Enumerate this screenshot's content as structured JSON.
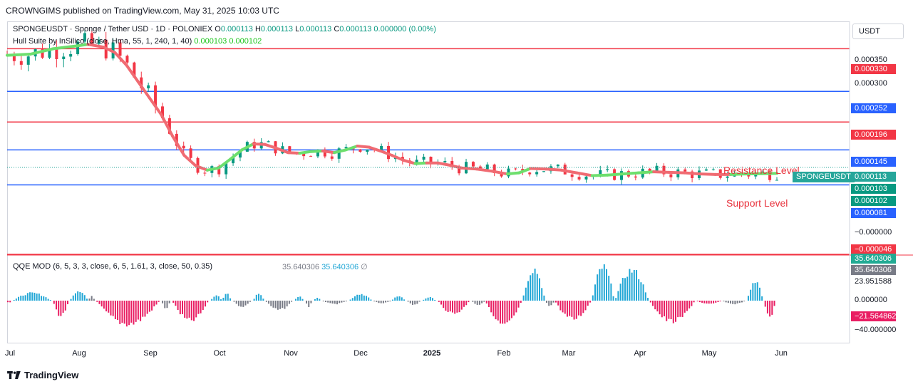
{
  "header": {
    "published": "CROWNGIMS published on TradingView.com, May 31, 2025 10:03 UTC"
  },
  "legend": {
    "symbol_line": "SPONGEUSDT · Sponge / Tether USD · 1D · POLONIEX",
    "ohlc": {
      "o_label": "O",
      "o": "0.000113",
      "h_label": "H",
      "h": "0.000113",
      "l_label": "L",
      "l": "0.000113",
      "c_label": "C",
      "c": "0.000113",
      "change": "0.000000 (0.00%)"
    },
    "hull_line": "Hull Suite by InSilico (close, Hma, 55, 1, 240, 1, 40)",
    "hull_v1": "0.000103",
    "hull_v2": "0.000102",
    "qqe_line": "QQE MOD (6, 5, 3, 3, close, 6, 5, 1.61, 3, close, 50, 0.35)",
    "qqe_v1": "35.640306",
    "qqe_v2": "35.640306",
    "qqe_v3": "∅"
  },
  "currency": "USDT",
  "price_axis": {
    "labels": [
      "0.000350",
      "0.000300",
      "−0.000000"
    ],
    "tags": [
      {
        "text": "0.000330",
        "color": "#f23645"
      },
      {
        "text": "0.000252",
        "color": "#2962ff"
      },
      {
        "text": "0.000196",
        "color": "#f23645"
      },
      {
        "text": "0.000145",
        "color": "#2962ff"
      },
      {
        "text": "0.000113",
        "color": "#26a69a"
      },
      {
        "text": "0.000103",
        "color": "#089981"
      },
      {
        "text": "0.000102",
        "color": "#089981"
      },
      {
        "text": "0.000081",
        "color": "#2962ff"
      },
      {
        "text": "−0.000046",
        "color": "#f23645"
      }
    ]
  },
  "qqe_axis": {
    "labels": [
      "23.951588",
      "0.000000",
      "−40.000000"
    ],
    "tags": [
      {
        "text": "35.640306",
        "color": "#22ab94"
      },
      {
        "text": "35.640306",
        "color": "#787b86"
      },
      {
        "text": "−21.564862",
        "color": "#e91e63"
      }
    ]
  },
  "time_axis": [
    "Jul",
    "Aug",
    "Sep",
    "Oct",
    "Nov",
    "Dec",
    "2025",
    "Feb",
    "Mar",
    "Apr",
    "May",
    "Jun"
  ],
  "annotations": {
    "resistance": "Resistance Level",
    "support": "Support Level",
    "symbol_tag": "SPONGEUSDT"
  },
  "footer": {
    "brand": "TradingView"
  },
  "chart_data": [
    {
      "type": "candlestick",
      "title": "SPONGEUSDT · Sponge / Tether USD · 1D · POLONIEX",
      "ylim": [
        -4.6e-05,
        0.00038
      ],
      "x_labels": [
        "Jul",
        "Aug",
        "Sep",
        "Oct",
        "Nov",
        "Dec",
        "2025",
        "Feb",
        "Mar",
        "Apr",
        "May",
        "Jun"
      ],
      "horizontal_levels": [
        {
          "value": 0.00033,
          "color": "#f23645"
        },
        {
          "value": 0.000252,
          "color": "#2962ff"
        },
        {
          "value": 0.000196,
          "color": "#f23645"
        },
        {
          "value": 0.000145,
          "color": "#2962ff"
        },
        {
          "value": 8.1e-05,
          "color": "#2962ff"
        },
        {
          "value": -4.6e-05,
          "color": "#f23645"
        }
      ],
      "last_price": 0.000113,
      "hull_points": [
        [
          0.0,
          0.000318
        ],
        [
          0.03,
          0.00032
        ],
        [
          0.06,
          0.00033
        ],
        [
          0.09,
          0.000335
        ],
        [
          0.105,
          0.000338
        ],
        [
          0.125,
          0.000333
        ],
        [
          0.14,
          0.000323
        ],
        [
          0.155,
          0.0003
        ],
        [
          0.17,
          0.00027
        ],
        [
          0.185,
          0.00024
        ],
        [
          0.2,
          0.00021
        ],
        [
          0.215,
          0.00017
        ],
        [
          0.23,
          0.000135
        ],
        [
          0.245,
          0.000116
        ],
        [
          0.26,
          0.000108
        ],
        [
          0.275,
          0.000112
        ],
        [
          0.29,
          0.000128
        ],
        [
          0.305,
          0.000145
        ],
        [
          0.32,
          0.000156
        ],
        [
          0.335,
          0.000155
        ],
        [
          0.35,
          0.000148
        ],
        [
          0.365,
          0.00014
        ],
        [
          0.38,
          0.000139
        ],
        [
          0.395,
          0.000142
        ],
        [
          0.41,
          0.000143
        ],
        [
          0.425,
          0.00014
        ],
        [
          0.44,
          0.000145
        ],
        [
          0.455,
          0.000152
        ],
        [
          0.47,
          0.00015
        ],
        [
          0.485,
          0.000143
        ],
        [
          0.5,
          0.000135
        ],
        [
          0.515,
          0.000126
        ],
        [
          0.53,
          0.00012
        ],
        [
          0.545,
          0.000121
        ],
        [
          0.56,
          0.000121
        ],
        [
          0.575,
          0.000117
        ],
        [
          0.59,
          0.000112
        ],
        [
          0.61,
          0.00011
        ],
        [
          0.63,
          0.000106
        ],
        [
          0.65,
          0.000101
        ],
        [
          0.665,
          0.000103
        ],
        [
          0.68,
          0.000111
        ],
        [
          0.7,
          0.00011
        ],
        [
          0.72,
          0.000108
        ],
        [
          0.74,
          0.000103
        ],
        [
          0.76,
          9.8e-05
        ],
        [
          0.78,
          9.9e-05
        ],
        [
          0.8,
          0.000101
        ],
        [
          0.82,
          0.000103
        ],
        [
          0.84,
          0.000105
        ],
        [
          0.86,
          0.000104
        ],
        [
          0.88,
          0.000103
        ],
        [
          0.9,
          0.000101
        ],
        [
          0.92,
          0.0001
        ],
        [
          0.94,
          0.0001
        ],
        [
          0.96,
          0.000101
        ],
        [
          1.0,
          0.000102
        ]
      ]
    },
    {
      "type": "bar",
      "title": "QQE MOD (6, 5, 3, 3, close, 6, 5, 1.61, 3, close, 50, 0.35)",
      "ylim": [
        -45,
        45
      ],
      "zero_line": 0,
      "last_values": [
        35.640306,
        -21.564862
      ],
      "segments": [
        {
          "from": 0.0,
          "to": 0.008,
          "sign": -1,
          "peak": 3,
          "color": "#e91e63"
        },
        {
          "from": 0.008,
          "to": 0.06,
          "sign": 1,
          "peak": 9,
          "color": "#22a7d6"
        },
        {
          "from": 0.06,
          "to": 0.082,
          "sign": -1,
          "peak": 18,
          "color": "#e91e63"
        },
        {
          "from": 0.082,
          "to": 0.106,
          "sign": 1,
          "peak": 12,
          "color": "#22a7d6"
        },
        {
          "from": 0.106,
          "to": 0.116,
          "sign": 1,
          "peak": 5,
          "color": "#787b86"
        },
        {
          "from": 0.116,
          "to": 0.201,
          "sign": -1,
          "peak": 28,
          "color": "#e91e63"
        },
        {
          "from": 0.201,
          "to": 0.215,
          "sign": -1,
          "peak": 9,
          "color": "#787b86"
        },
        {
          "from": 0.215,
          "to": 0.265,
          "sign": -1,
          "peak": 24,
          "color": "#e91e63"
        },
        {
          "from": 0.265,
          "to": 0.28,
          "sign": 1,
          "peak": 6,
          "color": "#22a7d6"
        },
        {
          "from": 0.28,
          "to": 0.294,
          "sign": 1,
          "peak": 8,
          "color": "#22a7d6"
        },
        {
          "from": 0.294,
          "to": 0.32,
          "sign": -1,
          "peak": 7,
          "color": "#787b86"
        },
        {
          "from": 0.32,
          "to": 0.336,
          "sign": 1,
          "peak": 8,
          "color": "#22a7d6"
        },
        {
          "from": 0.336,
          "to": 0.374,
          "sign": -1,
          "peak": 11,
          "color": "#787b86"
        },
        {
          "from": 0.374,
          "to": 0.388,
          "sign": 1,
          "peak": 5,
          "color": "#22a7d6"
        },
        {
          "from": 0.388,
          "to": 0.399,
          "sign": -1,
          "peak": 7,
          "color": "#787b86"
        },
        {
          "from": 0.399,
          "to": 0.41,
          "sign": 1,
          "peak": 4,
          "color": "#22a7d6"
        },
        {
          "from": 0.41,
          "to": 0.445,
          "sign": -1,
          "peak": 4,
          "color": "#787b86"
        },
        {
          "from": 0.445,
          "to": 0.476,
          "sign": 1,
          "peak": 8,
          "color": "#22a7d6"
        },
        {
          "from": 0.476,
          "to": 0.5,
          "sign": -1,
          "peak": 3,
          "color": "#787b86"
        },
        {
          "from": 0.5,
          "to": 0.52,
          "sign": 1,
          "peak": 5,
          "color": "#22a7d6"
        },
        {
          "from": 0.52,
          "to": 0.54,
          "sign": -1,
          "peak": 5,
          "color": "#787b86"
        },
        {
          "from": 0.54,
          "to": 0.56,
          "sign": 1,
          "peak": 4,
          "color": "#22a7d6"
        },
        {
          "from": 0.56,
          "to": 0.604,
          "sign": -1,
          "peak": 15,
          "color": "#e91e63"
        },
        {
          "from": 0.604,
          "to": 0.622,
          "sign": -1,
          "peak": 5,
          "color": "#787b86"
        },
        {
          "from": 0.622,
          "to": 0.67,
          "sign": -1,
          "peak": 30,
          "color": "#e91e63"
        },
        {
          "from": 0.67,
          "to": 0.7,
          "sign": 1,
          "peak": 38,
          "color": "#22a7d6"
        },
        {
          "from": 0.7,
          "to": 0.712,
          "sign": -1,
          "peak": 6,
          "color": "#787b86"
        },
        {
          "from": 0.712,
          "to": 0.76,
          "sign": -1,
          "peak": 22,
          "color": "#e91e63"
        },
        {
          "from": 0.76,
          "to": 0.79,
          "sign": 1,
          "peak": 40,
          "color": "#22a7d6"
        },
        {
          "from": 0.79,
          "to": 0.835,
          "sign": 1,
          "peak": 36,
          "color": "#22a7d6"
        },
        {
          "from": 0.835,
          "to": 0.896,
          "sign": -1,
          "peak": 25,
          "color": "#e91e63"
        },
        {
          "from": 0.896,
          "to": 0.93,
          "sign": -1,
          "peak": 4,
          "color": "#e91e63"
        },
        {
          "from": 0.93,
          "to": 0.962,
          "sign": -1,
          "peak": 4,
          "color": "#787b86"
        },
        {
          "from": 0.962,
          "to": 0.984,
          "sign": 1,
          "peak": 24,
          "color": "#22a7d6"
        },
        {
          "from": 0.984,
          "to": 1.0,
          "sign": -1,
          "peak": 21,
          "color": "#e91e63"
        }
      ]
    }
  ]
}
